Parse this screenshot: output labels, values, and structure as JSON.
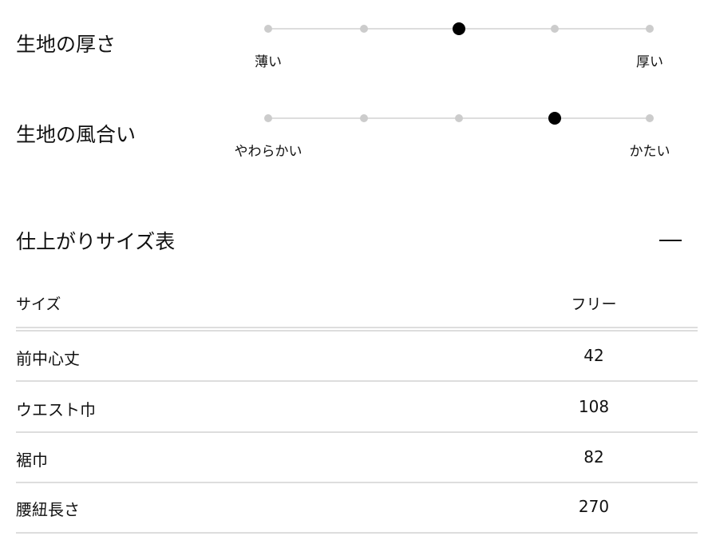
{
  "ratings": [
    {
      "title": "生地の厚さ",
      "min_label": "薄い",
      "max_label": "厚い",
      "steps": 5,
      "selected": 3
    },
    {
      "title": "生地の風合い",
      "min_label": "やわらかい",
      "max_label": "かたい",
      "steps": 5,
      "selected": 4
    }
  ],
  "size_table": {
    "title": "仕上がりサイズ表",
    "toggle": "collapse-minus-icon",
    "header": {
      "label": "サイズ",
      "value": "フリー"
    },
    "rows": [
      {
        "label": "前中心丈",
        "value": "42"
      },
      {
        "label": "ウエスト巾",
        "value": "108"
      },
      {
        "label": "裾巾",
        "value": "82"
      },
      {
        "label": "腰紐長さ",
        "value": "270"
      }
    ]
  }
}
